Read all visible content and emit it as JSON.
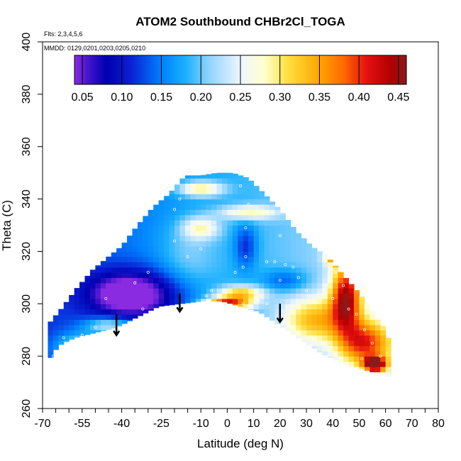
{
  "chart_data": {
    "type": "heatmap",
    "title": "ATOM2 Southbound CHBr2Cl_TOGA",
    "flights_note": "Flts: 2,3,4,5,6",
    "dates_note": "MMDD: 0129,0201,0203,0205,0210",
    "xlabel": "Latitude (deg N)",
    "ylabel": "Theta (C)",
    "xlim": [
      -70,
      80
    ],
    "ylim": [
      260,
      400
    ],
    "x_tick_labels": [
      "-70",
      "-55",
      "-40",
      "-25",
      "-10",
      "0",
      "10",
      "20",
      "30",
      "40",
      "50",
      "60",
      "70",
      "80"
    ],
    "x_tick_values": [
      -70,
      -55,
      -40,
      -25,
      -10,
      0,
      10,
      20,
      30,
      40,
      50,
      60,
      70,
      80
    ],
    "y_tick_labels": [
      "260",
      "280",
      "300",
      "320",
      "340",
      "360",
      "380",
      "400"
    ],
    "y_tick_values": [
      260,
      280,
      300,
      320,
      340,
      360,
      380,
      400
    ],
    "colorbar": {
      "range": [
        0.04,
        0.46
      ],
      "tick_labels": [
        "0.05",
        "0.10",
        "0.15",
        "0.20",
        "0.25",
        "0.30",
        "0.35",
        "0.40",
        "0.45"
      ],
      "tick_values": [
        0.05,
        0.1,
        0.15,
        0.2,
        0.25,
        0.3,
        0.35,
        0.4,
        0.45
      ],
      "stops": [
        {
          "v": 0.04,
          "c": "#8a2be2"
        },
        {
          "v": 0.06,
          "c": "#3a12c8"
        },
        {
          "v": 0.08,
          "c": "#0000b0"
        },
        {
          "v": 0.11,
          "c": "#0a1ed2"
        },
        {
          "v": 0.15,
          "c": "#0080ff"
        },
        {
          "v": 0.18,
          "c": "#1ab0ff"
        },
        {
          "v": 0.21,
          "c": "#8fd3ff"
        },
        {
          "v": 0.25,
          "c": "#eef6ff"
        },
        {
          "v": 0.28,
          "c": "#ffffd0"
        },
        {
          "v": 0.31,
          "c": "#ffe040"
        },
        {
          "v": 0.35,
          "c": "#ffa500"
        },
        {
          "v": 0.38,
          "c": "#ff6a00"
        },
        {
          "v": 0.41,
          "c": "#e51010"
        },
        {
          "v": 0.44,
          "c": "#b00000"
        },
        {
          "v": 0.46,
          "c": "#8b1a1a"
        }
      ]
    },
    "domain_bottom": [
      [
        -68,
        278
      ],
      [
        -64,
        284
      ],
      [
        -58,
        287
      ],
      [
        -50,
        289
      ],
      [
        -42,
        291
      ],
      [
        -34,
        295
      ],
      [
        -26,
        299
      ],
      [
        -18,
        300
      ],
      [
        -10,
        301
      ],
      [
        -2,
        301
      ],
      [
        5,
        299
      ],
      [
        12,
        297
      ],
      [
        18,
        293
      ],
      [
        24,
        289
      ],
      [
        30,
        285
      ],
      [
        36,
        281
      ],
      [
        42,
        278
      ],
      [
        48,
        276
      ],
      [
        55,
        274
      ],
      [
        62,
        272
      ]
    ],
    "domain_top": [
      [
        -68,
        292
      ],
      [
        -63,
        298
      ],
      [
        -57,
        306
      ],
      [
        -51,
        313
      ],
      [
        -45,
        318
      ],
      [
        -40,
        322
      ],
      [
        -34,
        330
      ],
      [
        -28,
        337
      ],
      [
        -22,
        342
      ],
      [
        -16,
        349
      ],
      [
        -10,
        349
      ],
      [
        -4,
        350
      ],
      [
        2,
        350
      ],
      [
        8,
        348
      ],
      [
        14,
        342
      ],
      [
        20,
        336
      ],
      [
        26,
        328
      ],
      [
        32,
        322
      ],
      [
        38,
        318
      ],
      [
        44,
        311
      ],
      [
        50,
        304
      ],
      [
        56,
        296
      ],
      [
        60,
        290
      ],
      [
        62,
        284
      ]
    ],
    "field_blobs": [
      {
        "x": -40,
        "y": 304,
        "value": 0.09,
        "sx": 10,
        "sy": 6
      },
      {
        "x": -30,
        "y": 303,
        "value": 0.1,
        "sx": 12,
        "sy": 7
      },
      {
        "x": 7,
        "y": 322,
        "value": 0.11,
        "sx": 3,
        "sy": 6
      },
      {
        "x": 22,
        "y": 309,
        "value": 0.12,
        "sx": 6,
        "sy": 3
      },
      {
        "x": 0,
        "y": 300,
        "value": 0.42,
        "sx": 6,
        "sy": 1.6
      },
      {
        "x": 5,
        "y": 304,
        "value": 0.33,
        "sx": 6,
        "sy": 2
      },
      {
        "x": 45,
        "y": 303,
        "value": 0.4,
        "sx": 4,
        "sy": 9
      },
      {
        "x": 42,
        "y": 318,
        "value": 0.39,
        "sx": 3,
        "sy": 2
      },
      {
        "x": 52,
        "y": 285,
        "value": 0.36,
        "sx": 7,
        "sy": 6
      },
      {
        "x": 56,
        "y": 277,
        "value": 0.43,
        "sx": 3,
        "sy": 2
      },
      {
        "x": 33,
        "y": 294,
        "value": 0.31,
        "sx": 9,
        "sy": 6
      },
      {
        "x": -10,
        "y": 344,
        "value": 0.31,
        "sx": 6,
        "sy": 2
      },
      {
        "x": -10,
        "y": 329,
        "value": 0.28,
        "sx": 5,
        "sy": 3
      },
      {
        "x": 8,
        "y": 335,
        "value": 0.28,
        "sx": 8,
        "sy": 2
      },
      {
        "x": -55,
        "y": 283,
        "value": 0.29,
        "sx": 7,
        "sy": 4
      },
      {
        "x": -45,
        "y": 292,
        "value": 0.28,
        "sx": 6,
        "sy": 2
      },
      {
        "x": -15,
        "y": 318,
        "value": 0.22,
        "sx": 8,
        "sy": 10
      }
    ],
    "field_base_value": 0.18,
    "field_gradient": {
      "x_coeff": 0.0009,
      "y_coeff": 0.0
    },
    "arrows": [
      {
        "x": -42,
        "y_top": 296,
        "y_bottom": 288
      },
      {
        "x": -18,
        "y_top": 304,
        "y_bottom": 297
      },
      {
        "x": 20,
        "y_top": 300,
        "y_bottom": 293
      }
    ],
    "sample_points": [
      [
        -46,
        302
      ],
      [
        -32,
        298
      ],
      [
        -26,
        296
      ],
      [
        -35,
        308
      ],
      [
        -30,
        312
      ],
      [
        -20,
        324
      ],
      [
        -15,
        318
      ],
      [
        -10,
        321
      ],
      [
        -20,
        336
      ],
      [
        -18,
        340
      ],
      [
        -5,
        331
      ],
      [
        3,
        312
      ],
      [
        6,
        314
      ],
      [
        7,
        318
      ],
      [
        7,
        329
      ],
      [
        8,
        338
      ],
      [
        5,
        345
      ],
      [
        15,
        335
      ],
      [
        20,
        326
      ],
      [
        18,
        316
      ],
      [
        15,
        316
      ],
      [
        22,
        315
      ],
      [
        25,
        314
      ],
      [
        27,
        310
      ],
      [
        30,
        305
      ],
      [
        20,
        309
      ],
      [
        -8,
        303
      ],
      [
        -6,
        305
      ],
      [
        -4,
        300
      ],
      [
        -2,
        300
      ],
      [
        6,
        300
      ],
      [
        8,
        299
      ],
      [
        12,
        301
      ],
      [
        15,
        300
      ],
      [
        38,
        320
      ],
      [
        41,
        312
      ],
      [
        44,
        307
      ],
      [
        40,
        302
      ],
      [
        46,
        298
      ],
      [
        49,
        296
      ],
      [
        52,
        290
      ],
      [
        55,
        285
      ],
      [
        58,
        280
      ],
      [
        51,
        279
      ],
      [
        -55,
        288
      ],
      [
        -60,
        283
      ],
      [
        -66,
        280
      ],
      [
        -50,
        291
      ],
      [
        -62,
        287
      ]
    ]
  }
}
